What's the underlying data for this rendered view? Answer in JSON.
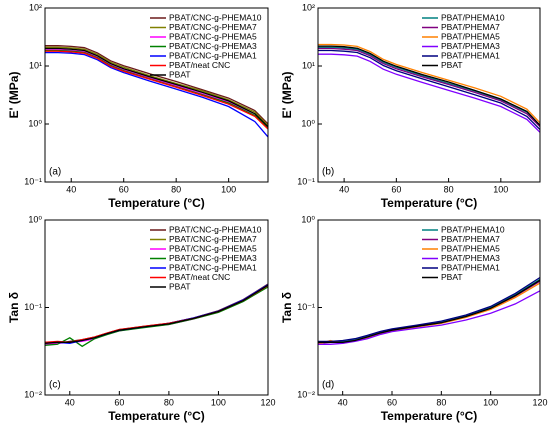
{
  "chart_data": [
    {
      "type": "line",
      "xlabel": "Temperature (°C)",
      "ylabel": "E' (MPa)",
      "annotation": "(a)",
      "ylog": true,
      "legend": "upper right",
      "xlim": [
        30,
        115
      ],
      "xticks": [
        40,
        60,
        80,
        100
      ],
      "ylim": [
        0.1,
        100
      ],
      "yticks": [
        {
          "value": 0.1,
          "label": "10⁻¹"
        },
        {
          "value": 1,
          "label": "10⁰"
        },
        {
          "value": 10,
          "label": "10¹"
        },
        {
          "value": 100,
          "label": "10²"
        }
      ],
      "x": [
        30,
        35,
        40,
        45,
        50,
        55,
        60,
        70,
        80,
        90,
        100,
        110,
        115
      ],
      "series": [
        {
          "name": "PBAT/CNC-g-PHEMA10",
          "color": "#6b1a1a",
          "values": [
            22.4,
            22.4,
            21.8,
            20.7,
            16.8,
            12.3,
            10.1,
            7.3,
            5.4,
            3.9,
            2.8,
            1.7,
            1.0
          ]
        },
        {
          "name": "PBAT/CNC-g-PHEMA7",
          "color": "#808000",
          "values": [
            21,
            21,
            20.5,
            19.4,
            15.8,
            11.6,
            9.5,
            6.8,
            5,
            3.7,
            2.6,
            1.6,
            0.95
          ]
        },
        {
          "name": "PBAT/CNC-g-PHEMA5",
          "color": "#ff00ff",
          "values": [
            19,
            19,
            18.5,
            17.6,
            14.3,
            10.5,
            8.6,
            6.2,
            4.6,
            3.3,
            2.4,
            1.4,
            0.85
          ]
        },
        {
          "name": "PBAT/CNC-g-PHEMA3",
          "color": "#008000",
          "values": [
            18.5,
            18.5,
            18,
            17.1,
            13.9,
            10.2,
            8.3,
            6,
            4.4,
            3.2,
            2.3,
            1.4,
            0.85
          ]
        },
        {
          "name": "PBAT/CNC-g-PHEMA1",
          "color": "#0000ff",
          "values": [
            17,
            17,
            16.6,
            15.7,
            12.8,
            9.4,
            7.7,
            5.5,
            4,
            2.9,
            2,
            1.1,
            0.6
          ]
        },
        {
          "name": "PBAT/neat CNC",
          "color": "#ff0000",
          "values": [
            18,
            18,
            17.5,
            16.6,
            13.5,
            9.9,
            8.1,
            5.9,
            4.3,
            3.1,
            2.2,
            1.35,
            0.82
          ]
        },
        {
          "name": "PBAT",
          "color": "#000000",
          "values": [
            20,
            20,
            19.5,
            18.5,
            15,
            11,
            9,
            6.5,
            4.8,
            3.5,
            2.5,
            1.5,
            0.9
          ]
        }
      ]
    },
    {
      "type": "line",
      "xlabel": "Temperature (°C)",
      "ylabel": "E' (MPa)",
      "annotation": "(b)",
      "ylog": true,
      "legend": "upper right",
      "xlim": [
        30,
        115
      ],
      "xticks": [
        40,
        60,
        80,
        100
      ],
      "ylim": [
        0.1,
        100
      ],
      "yticks": [
        {
          "value": 0.1,
          "label": "10⁻¹"
        },
        {
          "value": 1,
          "label": "10⁰"
        },
        {
          "value": 10,
          "label": "10¹"
        },
        {
          "value": 100,
          "label": "10²"
        }
      ],
      "x": [
        30,
        35,
        40,
        45,
        50,
        55,
        60,
        70,
        80,
        90,
        100,
        110,
        115
      ],
      "series": [
        {
          "name": "PBAT/PHEMA10",
          "color": "#008080",
          "values": [
            21,
            21,
            20.5,
            19.4,
            15.8,
            11.6,
            9.5,
            6.8,
            5,
            3.7,
            2.6,
            1.6,
            0.95
          ]
        },
        {
          "name": "PBAT/PHEMA7",
          "color": "#800080",
          "values": [
            20,
            20,
            19.5,
            18.5,
            15,
            11,
            9,
            6.5,
            4.8,
            3.5,
            2.5,
            1.5,
            0.9
          ]
        },
        {
          "name": "PBAT/PHEMA5",
          "color": "#ff8000",
          "values": [
            23.5,
            23.5,
            23,
            21.8,
            17.7,
            13,
            10.6,
            7.7,
            5.7,
            4.2,
            3,
            1.8,
            1.05
          ]
        },
        {
          "name": "PBAT/PHEMA3",
          "color": "#8000ff",
          "values": [
            16,
            16,
            15.6,
            14.8,
            12,
            8.8,
            7.2,
            5.2,
            3.8,
            2.8,
            2,
            1.2,
            0.72
          ]
        },
        {
          "name": "PBAT/PHEMA1",
          "color": "#000080",
          "values": [
            18.5,
            18.5,
            18,
            17.1,
            13.9,
            10.2,
            8.3,
            6,
            4.4,
            3.2,
            2.3,
            1.35,
            0.8
          ]
        },
        {
          "name": "PBAT",
          "color": "#000000",
          "values": [
            22,
            22,
            21.5,
            20.3,
            16.5,
            12.1,
            9.9,
            7.1,
            5.3,
            3.8,
            2.7,
            1.65,
            0.95
          ]
        }
      ]
    },
    {
      "type": "line",
      "xlabel": "Temperature (°C)",
      "ylabel": "Tan δ",
      "annotation": "(c)",
      "ylog": true,
      "legend": "upper right",
      "xlim": [
        30,
        120
      ],
      "xticks": [
        40,
        60,
        80,
        100,
        120
      ],
      "ylim": [
        0.01,
        1
      ],
      "yticks": [
        {
          "value": 0.01,
          "label": "10⁻²"
        },
        {
          "value": 0.1,
          "label": "10⁻¹"
        },
        {
          "value": 1,
          "label": "10⁰"
        }
      ],
      "x": [
        30,
        35,
        40,
        45,
        50,
        55,
        60,
        70,
        80,
        90,
        100,
        110,
        120
      ],
      "series": [
        {
          "name": "PBAT/CNC-g-PHEMA10",
          "color": "#6b1a1a",
          "values": [
            0.04,
            0.039,
            0.041,
            0.043,
            0.046,
            0.051,
            0.056,
            0.061,
            0.066,
            0.076,
            0.092,
            0.123,
            0.185
          ]
        },
        {
          "name": "PBAT/CNC-g-PHEMA7",
          "color": "#808000",
          "values": [
            0.039,
            0.04,
            0.04,
            0.042,
            0.045,
            0.05,
            0.055,
            0.06,
            0.065,
            0.075,
            0.09,
            0.12,
            0.18
          ]
        },
        {
          "name": "PBAT/CNC-g-PHEMA5",
          "color": "#ff00ff",
          "values": [
            0.038,
            0.039,
            0.04,
            0.041,
            0.044,
            0.05,
            0.054,
            0.06,
            0.064,
            0.074,
            0.089,
            0.118,
            0.175
          ]
        },
        {
          "name": "PBAT/CNC-g-PHEMA3",
          "color": "#008000",
          "values": [
            0.037,
            0.038,
            0.045,
            0.036,
            0.044,
            0.049,
            0.054,
            0.059,
            0.064,
            0.074,
            0.088,
            0.117,
            0.172
          ]
        },
        {
          "name": "PBAT/CNC-g-PHEMA1",
          "color": "#0000ff",
          "values": [
            0.04,
            0.04,
            0.039,
            0.042,
            0.045,
            0.05,
            0.055,
            0.06,
            0.066,
            0.076,
            0.091,
            0.122,
            0.182
          ]
        },
        {
          "name": "PBAT/neat CNC",
          "color": "#ff0000",
          "values": [
            0.04,
            0.041,
            0.04,
            0.043,
            0.046,
            0.051,
            0.056,
            0.061,
            0.066,
            0.075,
            0.09,
            0.12,
            0.178
          ]
        },
        {
          "name": "PBAT",
          "color": "#000000",
          "values": [
            0.039,
            0.04,
            0.04,
            0.042,
            0.045,
            0.05,
            0.055,
            0.06,
            0.065,
            0.075,
            0.09,
            0.12,
            0.18
          ]
        }
      ]
    },
    {
      "type": "line",
      "xlabel": "Temperature (°C)",
      "ylabel": "Tan δ",
      "annotation": "(d)",
      "ylog": true,
      "legend": "upper right",
      "xlim": [
        30,
        120
      ],
      "xticks": [
        40,
        60,
        80,
        100,
        120
      ],
      "ylim": [
        0.01,
        1
      ],
      "yticks": [
        {
          "value": 0.01,
          "label": "10⁻²"
        },
        {
          "value": 0.1,
          "label": "10⁻¹"
        },
        {
          "value": 1,
          "label": "10⁰"
        }
      ],
      "x": [
        30,
        35,
        40,
        45,
        50,
        55,
        60,
        70,
        80,
        90,
        100,
        110,
        120
      ],
      "series": [
        {
          "name": "PBAT/PHEMA10",
          "color": "#008080",
          "values": [
            0.04,
            0.04,
            0.041,
            0.043,
            0.047,
            0.052,
            0.056,
            0.062,
            0.068,
            0.08,
            0.1,
            0.14,
            0.21
          ]
        },
        {
          "name": "PBAT/PHEMA7",
          "color": "#800080",
          "values": [
            0.039,
            0.04,
            0.04,
            0.042,
            0.046,
            0.051,
            0.055,
            0.061,
            0.067,
            0.078,
            0.097,
            0.135,
            0.2
          ]
        },
        {
          "name": "PBAT/PHEMA5",
          "color": "#ff8000",
          "values": [
            0.038,
            0.042,
            0.039,
            0.042,
            0.045,
            0.05,
            0.054,
            0.06,
            0.066,
            0.077,
            0.095,
            0.13,
            0.19
          ]
        },
        {
          "name": "PBAT/PHEMA3",
          "color": "#8000ff",
          "values": [
            0.038,
            0.038,
            0.039,
            0.041,
            0.044,
            0.049,
            0.053,
            0.058,
            0.063,
            0.072,
            0.086,
            0.11,
            0.155
          ]
        },
        {
          "name": "PBAT/PHEMA1",
          "color": "#000080",
          "values": [
            0.041,
            0.041,
            0.042,
            0.044,
            0.048,
            0.053,
            0.057,
            0.063,
            0.07,
            0.082,
            0.103,
            0.145,
            0.22
          ]
        },
        {
          "name": "PBAT",
          "color": "#000000",
          "values": [
            0.04,
            0.04,
            0.04,
            0.042,
            0.046,
            0.051,
            0.055,
            0.061,
            0.067,
            0.079,
            0.098,
            0.137,
            0.205
          ]
        }
      ]
    }
  ]
}
